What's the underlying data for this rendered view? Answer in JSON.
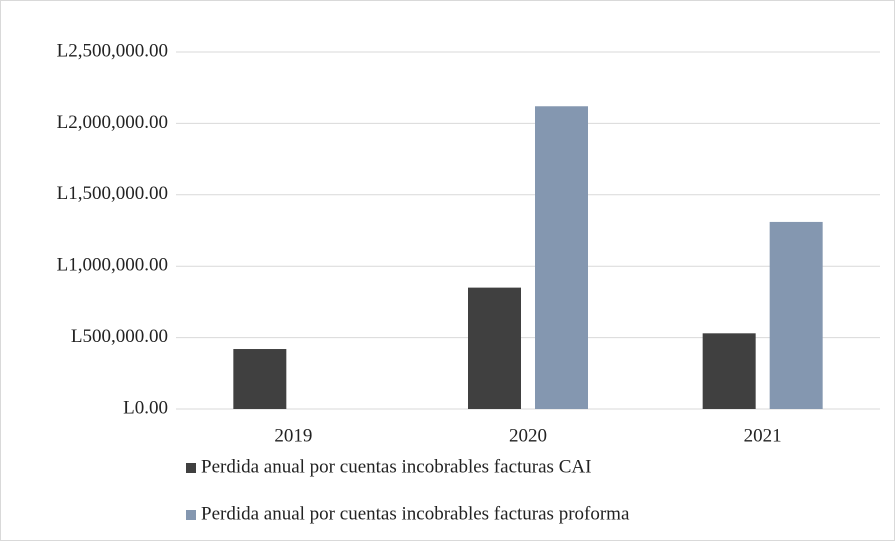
{
  "chart_data": {
    "type": "bar",
    "categories": [
      "2019",
      "2020",
      "2021"
    ],
    "series": [
      {
        "name": "Perdida anual por cuentas incobrables facturas CAI",
        "color": "#404040",
        "values": [
          420000,
          850000,
          530000
        ]
      },
      {
        "name": "Perdida anual por cuentas incobrables facturas proforma",
        "color": "#8497b0",
        "values": [
          null,
          2120000,
          1310000
        ]
      }
    ],
    "ylim": [
      0,
      2500000
    ],
    "yticks": [
      {
        "value": 0,
        "label": "L0.00"
      },
      {
        "value": 500000,
        "label": "L500,000.00"
      },
      {
        "value": 1000000,
        "label": "L1,000,000.00"
      },
      {
        "value": 1500000,
        "label": "L1,500,000.00"
      },
      {
        "value": 2000000,
        "label": "L2,000,000.00"
      },
      {
        "value": 2500000,
        "label": "L2,500,000.00"
      }
    ],
    "grid": true,
    "legend": "bottom"
  }
}
